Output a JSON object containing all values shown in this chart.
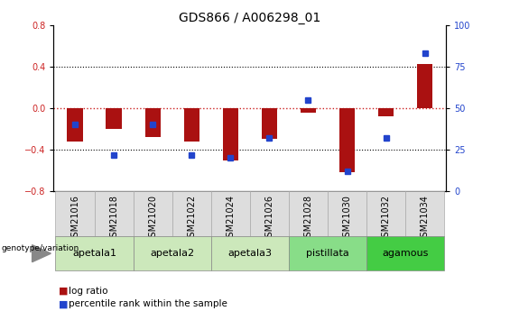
{
  "title": "GDS866 / A006298_01",
  "samples": [
    "GSM21016",
    "GSM21018",
    "GSM21020",
    "GSM21022",
    "GSM21024",
    "GSM21026",
    "GSM21028",
    "GSM21030",
    "GSM21032",
    "GSM21034"
  ],
  "log_ratios": [
    -0.32,
    -0.2,
    -0.28,
    -0.32,
    -0.5,
    -0.3,
    -0.04,
    -0.62,
    -0.08,
    0.42
  ],
  "percentile_ranks": [
    40,
    22,
    40,
    22,
    20,
    32,
    55,
    12,
    32,
    83
  ],
  "groups": [
    {
      "name": "apetala1",
      "samples": [
        "GSM21016",
        "GSM21018"
      ],
      "color": "#cce8bb"
    },
    {
      "name": "apetala2",
      "samples": [
        "GSM21020",
        "GSM21022"
      ],
      "color": "#cce8bb"
    },
    {
      "name": "apetala3",
      "samples": [
        "GSM21024",
        "GSM21026"
      ],
      "color": "#cce8bb"
    },
    {
      "name": "pistillata",
      "samples": [
        "GSM21028",
        "GSM21030"
      ],
      "color": "#88dd88"
    },
    {
      "name": "agamous",
      "samples": [
        "GSM21032",
        "GSM21034"
      ],
      "color": "#44cc44"
    }
  ],
  "ylim_left": [
    -0.8,
    0.8
  ],
  "ylim_right": [
    0,
    100
  ],
  "y_ticks_left": [
    -0.8,
    -0.4,
    0.0,
    0.4,
    0.8
  ],
  "y_ticks_right": [
    0,
    25,
    50,
    75,
    100
  ],
  "bar_color_red": "#aa1111",
  "bar_color_blue": "#2244cc",
  "hline_black": "black",
  "hline_red": "#cc2222",
  "title_fontsize": 10,
  "tick_fontsize": 7,
  "label_fontsize": 7.5,
  "group_label_fontsize": 8,
  "bar_width": 0.4,
  "legend_label_red": "log ratio",
  "legend_label_blue": "percentile rank within the sample",
  "genotype_label": "genotype/variation"
}
